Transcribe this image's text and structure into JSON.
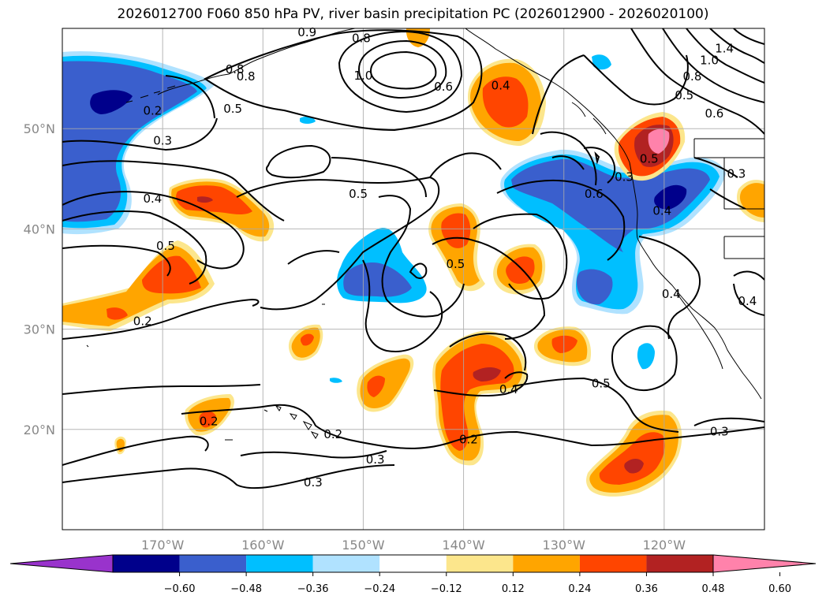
{
  "title": "2026012700 F060 850 hPa PV, river basin precipitation PC (2026012900 - 2026020100)",
  "map": {
    "lon_range": [
      -180,
      -110
    ],
    "lat_range": [
      10,
      60
    ],
    "lon_ticks": [
      {
        "lon": -170,
        "label": "170°W"
      },
      {
        "lon": -160,
        "label": "160°W"
      },
      {
        "lon": -150,
        "label": "150°W"
      },
      {
        "lon": -140,
        "label": "140°W"
      },
      {
        "lon": -130,
        "label": "130°W"
      },
      {
        "lon": -120,
        "label": "120°W"
      }
    ],
    "lat_ticks": [
      {
        "lat": 50,
        "label": "50°N"
      },
      {
        "lat": 40,
        "label": "40°N"
      },
      {
        "lat": 30,
        "label": "30°N"
      },
      {
        "lat": 20,
        "label": "20°N"
      }
    ]
  },
  "colorbar": {
    "ticks": [
      "−0.60",
      "−0.48",
      "−0.36",
      "−0.24",
      "−0.12",
      "0.12",
      "0.24",
      "0.36",
      "0.48",
      "0.60"
    ],
    "colors": [
      "#9933cc",
      "#00008b",
      "#3a5fcd",
      "#00bfff",
      "#b0e2ff",
      "#ffffff",
      "#fce68c",
      "#ffa500",
      "#ff4500",
      "#b22222",
      "#ff82ab"
    ]
  },
  "contour_labels": [
    {
      "text": "0.8",
      "lon": -150.2,
      "lat": 59.0
    },
    {
      "text": "0.9",
      "lon": -155.6,
      "lat": 59.6
    },
    {
      "text": "1.0",
      "lon": -150.0,
      "lat": 55.3
    },
    {
      "text": "0.6",
      "lon": -142.0,
      "lat": 54.2
    },
    {
      "text": "0.8",
      "lon": -161.7,
      "lat": 55.2
    },
    {
      "text": "0.8",
      "lon": -162.8,
      "lat": 55.9
    },
    {
      "text": "0.5",
      "lon": -163.0,
      "lat": 52.0
    },
    {
      "text": "0.2",
      "lon": -171.0,
      "lat": 51.8
    },
    {
      "text": "0.3",
      "lon": -170.0,
      "lat": 48.8
    },
    {
      "text": "0.4",
      "lon": -171.0,
      "lat": 43.0
    },
    {
      "text": "0.5",
      "lon": -169.7,
      "lat": 38.3
    },
    {
      "text": "0.5",
      "lon": -150.5,
      "lat": 43.5
    },
    {
      "text": "0.2",
      "lon": -172.0,
      "lat": 30.8
    },
    {
      "text": "0.2",
      "lon": -165.4,
      "lat": 20.8
    },
    {
      "text": "0.2",
      "lon": -153.0,
      "lat": 19.5
    },
    {
      "text": "0.3",
      "lon": -148.8,
      "lat": 17.0
    },
    {
      "text": "0.3",
      "lon": -155.0,
      "lat": 14.7
    },
    {
      "text": "0.2",
      "lon": -139.5,
      "lat": 19.0
    },
    {
      "text": "0.4",
      "lon": -135.5,
      "lat": 24.0
    },
    {
      "text": "0.5",
      "lon": -140.8,
      "lat": 36.5
    },
    {
      "text": "0.5",
      "lon": -126.3,
      "lat": 24.6
    },
    {
      "text": "0.6",
      "lon": -127.0,
      "lat": 43.5
    },
    {
      "text": "0.3",
      "lon": -124.0,
      "lat": 45.2
    },
    {
      "text": "0.4",
      "lon": -119.3,
      "lat": 33.5
    },
    {
      "text": "0.4",
      "lon": -111.7,
      "lat": 32.8
    },
    {
      "text": "0.3",
      "lon": -112.8,
      "lat": 45.5
    },
    {
      "text": "0.3",
      "lon": -114.5,
      "lat": 19.8
    },
    {
      "text": "0.4",
      "lon": -136.3,
      "lat": 54.3
    },
    {
      "text": "1.4",
      "lon": -114.0,
      "lat": 58.0
    },
    {
      "text": "1.0",
      "lon": -115.5,
      "lat": 56.8
    },
    {
      "text": "0.8",
      "lon": -117.2,
      "lat": 55.2
    },
    {
      "text": "0.5",
      "lon": -118.0,
      "lat": 53.3
    },
    {
      "text": "0.6",
      "lon": -115.0,
      "lat": 51.5
    },
    {
      "text": "0.4",
      "lon": -120.2,
      "lat": 41.8
    },
    {
      "text": "0.5",
      "lon": -121.5,
      "lat": 47.0
    }
  ]
}
